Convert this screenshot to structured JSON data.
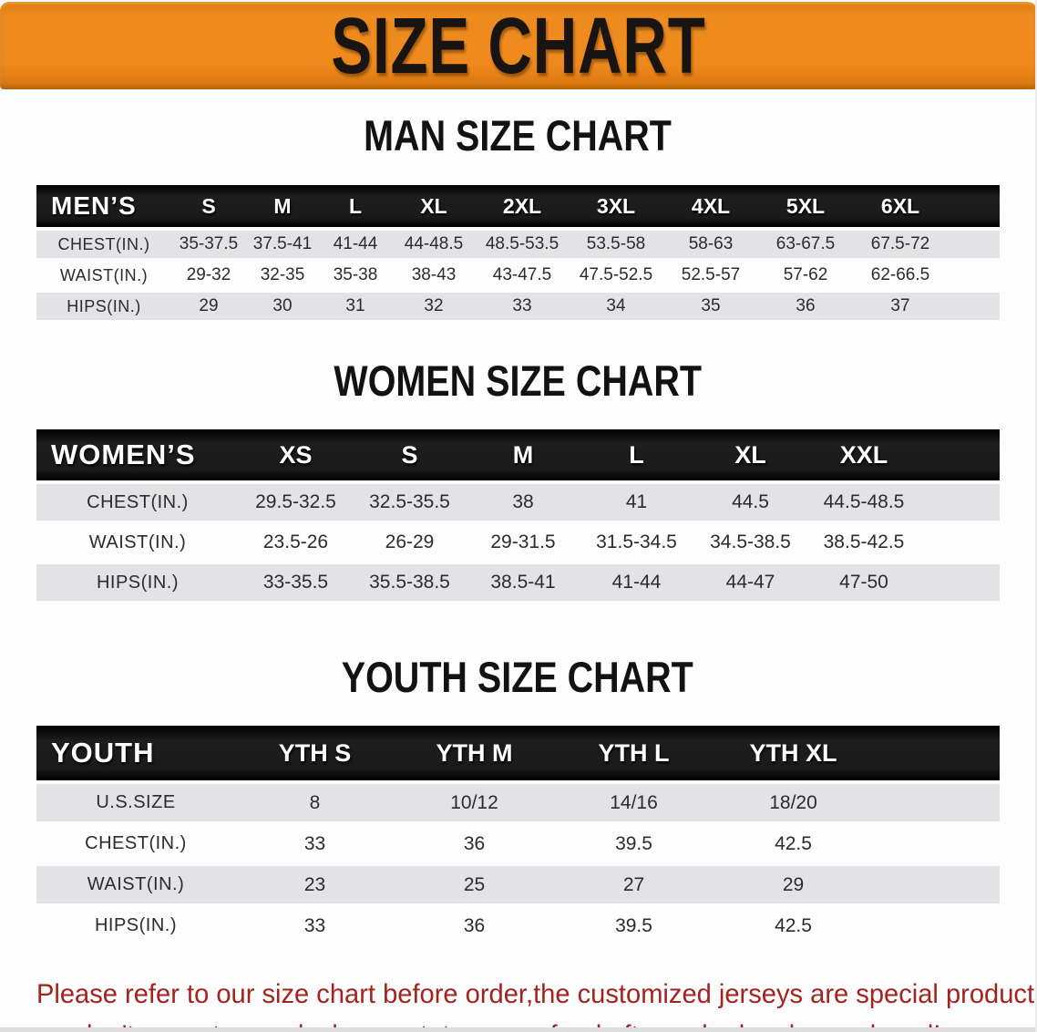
{
  "banner": {
    "title": "SIZE CHART",
    "bg_color": "#EE891D",
    "text_color": "#181411"
  },
  "man_section": {
    "title": "MAN SIZE CHART",
    "table": {
      "header_label": "MEN’S",
      "sizes": [
        "S",
        "M",
        "L",
        "XL",
        "2XL",
        "3XL",
        "4XL",
        "5XL",
        "6XL"
      ],
      "rows": [
        {
          "label": "CHEST(IN.)",
          "values": [
            "35-37.5",
            "37.5-41",
            "41-44",
            "44-48.5",
            "48.5-53.5",
            "53.5-58",
            "58-63",
            "63-67.5",
            "67.5-72"
          ]
        },
        {
          "label": "WAIST(IN.)",
          "values": [
            "29-32",
            "32-35",
            "35-38",
            "38-43",
            "43-47.5",
            "47.5-52.5",
            "52.5-57",
            "57-62",
            "62-66.5"
          ]
        },
        {
          "label": "HIPS(IN.)",
          "values": [
            "29",
            "30",
            "31",
            "32",
            "33",
            "34",
            "35",
            "36",
            "37"
          ]
        }
      ]
    }
  },
  "woman_section": {
    "title": "WOMEN SIZE CHART",
    "table": {
      "header_label": "WOMEN’S",
      "sizes": [
        "XS",
        "S",
        "M",
        "L",
        "XL",
        "XXL"
      ],
      "rows": [
        {
          "label": "CHEST(IN.)",
          "values": [
            "29.5-32.5",
            "32.5-35.5",
            "38",
            "41",
            "44.5",
            "44.5-48.5"
          ]
        },
        {
          "label": "WAIST(IN.)",
          "values": [
            "23.5-26",
            "26-29",
            "29-31.5",
            "31.5-34.5",
            "34.5-38.5",
            "38.5-42.5"
          ]
        },
        {
          "label": "HIPS(IN.)",
          "values": [
            "33-35.5",
            "35.5-38.5",
            "38.5-41",
            "41-44",
            "44-47",
            "47-50"
          ]
        }
      ]
    }
  },
  "youth_section": {
    "title": "YOUTH SIZE CHART",
    "table": {
      "header_label": "YOUTH",
      "sizes": [
        "YTH S",
        "YTH M",
        "YTH L",
        "YTH XL"
      ],
      "rows": [
        {
          "label": "U.S.SIZE",
          "values": [
            "8",
            "10/12",
            "14/16",
            "18/20"
          ]
        },
        {
          "label": "CHEST(IN.)",
          "values": [
            "33",
            "36",
            "39.5",
            "42.5"
          ]
        },
        {
          "label": "WAIST(IN.)",
          "values": [
            "23",
            "25",
            "27",
            "29"
          ]
        },
        {
          "label": "HIPS(IN.)",
          "values": [
            "33",
            "36",
            "39.5",
            "42.5"
          ]
        }
      ]
    }
  },
  "disclaimer": {
    "line1": "Please refer to our size chart before order,the customized jerseys are special products,",
    "line2": "we don't accept cancel, change, teturn or refund after order has been placed!",
    "color": "#A3231E"
  },
  "colors": {
    "header_bar": "#141414",
    "stripe_row": "#E3E3E5",
    "plain_row": "#FDFDFD"
  }
}
